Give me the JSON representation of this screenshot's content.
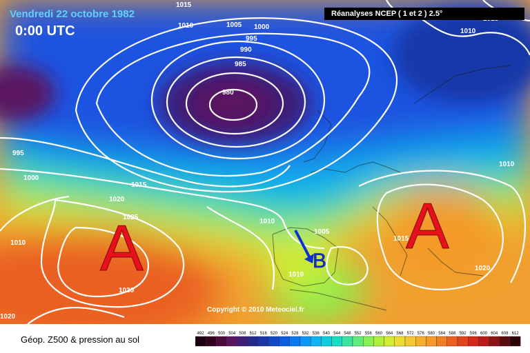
{
  "map": {
    "date_label": "Vendredi 22 octobre 1982",
    "time_label": "0:00 UTC",
    "source_label": "Réanalyses NCEP ( 1 et 2 ) 2.5°",
    "copyright": "Copyright © 2010 Meteociel.fr",
    "footer_label": "Géop. Z500 & pression au sol"
  },
  "isobar_labels": [
    "1015",
    "1010",
    "1005",
    "1000",
    "995",
    "990",
    "985",
    "980",
    "1010",
    "1015",
    "1010",
    "995",
    "1000",
    "1015",
    "1020",
    "1025",
    "1010",
    "1030",
    "1020",
    "1010",
    "1005",
    "1015",
    "1010",
    "1020"
  ],
  "pressure_systems": [
    {
      "letter": "A",
      "color": "#e8101a"
    },
    {
      "letter": "A",
      "color": "#e8101a"
    },
    {
      "letter": "B",
      "color": "#1030d0"
    }
  ],
  "scale": {
    "values": [
      "492",
      "496",
      "500",
      "504",
      "508",
      "512",
      "516",
      "520",
      "524",
      "528",
      "532",
      "536",
      "540",
      "544",
      "548",
      "552",
      "556",
      "560",
      "564",
      "568",
      "572",
      "576",
      "580",
      "584",
      "588",
      "592",
      "596",
      "600",
      "604",
      "608",
      "612"
    ],
    "colors": [
      "#1a0010",
      "#33001f",
      "#4b0a3a",
      "#5a1460",
      "#3c1e78",
      "#222a8c",
      "#1838a8",
      "#1048c8",
      "#0a5ce0",
      "#0a78ee",
      "#0a98f4",
      "#10b4f0",
      "#10cce0",
      "#18dcc4",
      "#38e4a0",
      "#60ec78",
      "#88f050",
      "#b0f038",
      "#d4ec30",
      "#ecdc30",
      "#f4c830",
      "#f4b02c",
      "#f49a28",
      "#f07e24",
      "#ea6020",
      "#e0441c",
      "#d42818",
      "#b81c18",
      "#8c1416",
      "#5a0c10",
      "#2a0608"
    ]
  }
}
